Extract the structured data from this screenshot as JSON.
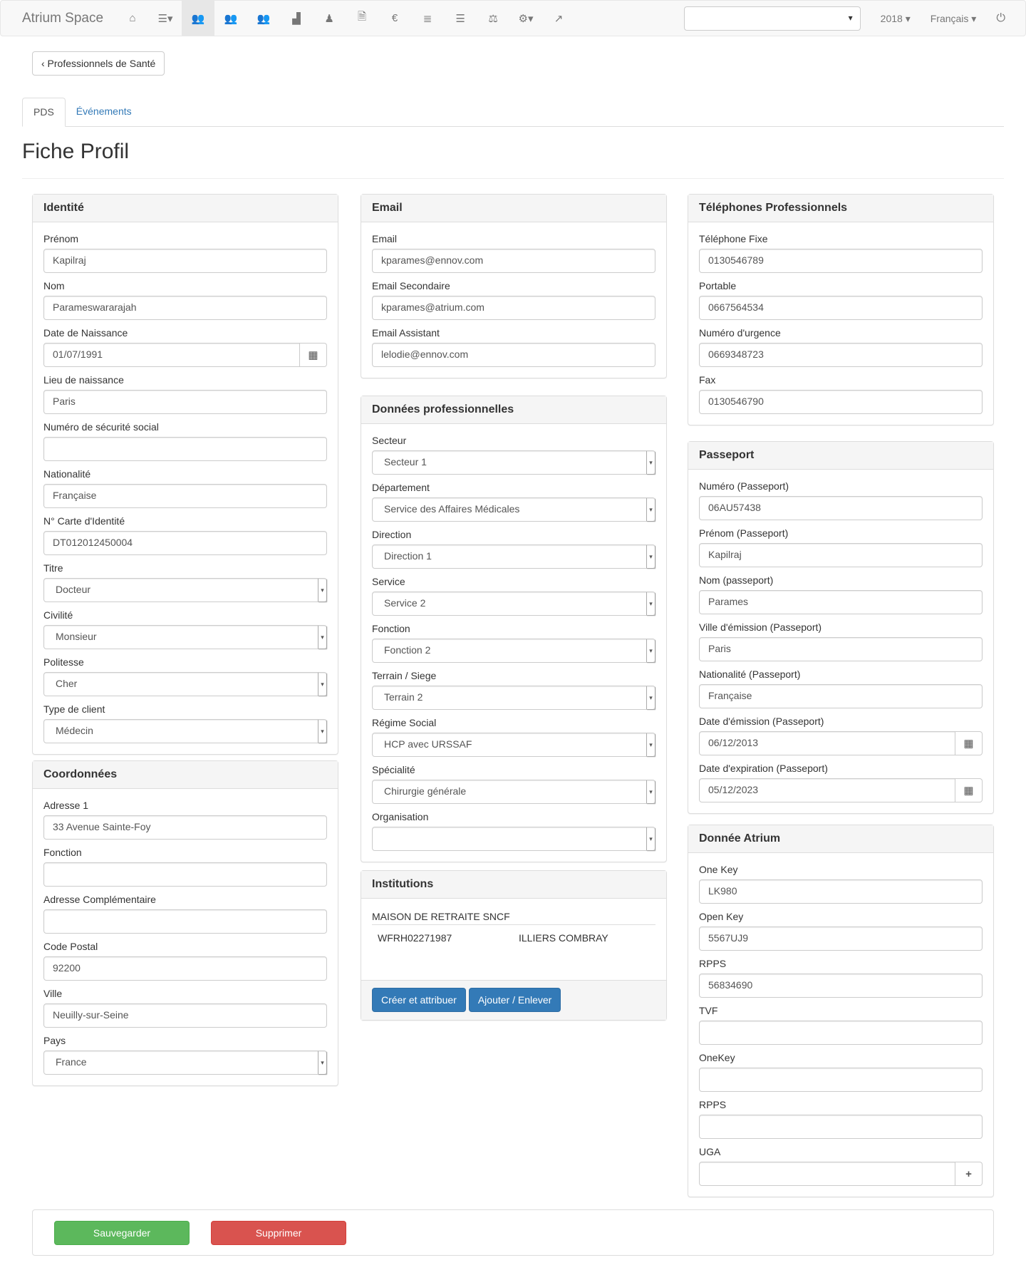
{
  "navbar": {
    "brand": "Atrium Space",
    "icons": [
      {
        "name": "home-icon",
        "glyph": "⌂"
      },
      {
        "name": "list-dropdown-icon",
        "glyph": "☰▾"
      },
      {
        "name": "group-icon",
        "glyph": "👥",
        "active": true
      },
      {
        "name": "group-icon-2",
        "glyph": "👥"
      },
      {
        "name": "group-icon-3",
        "glyph": "👥"
      },
      {
        "name": "industry-icon",
        "glyph": "▟"
      },
      {
        "name": "person-icon",
        "glyph": "♟"
      },
      {
        "name": "document-icon",
        "glyph": "🗎"
      },
      {
        "name": "euro-icon",
        "glyph": "€"
      },
      {
        "name": "database-icon",
        "glyph": "≣"
      },
      {
        "name": "list-icon",
        "glyph": "☰"
      },
      {
        "name": "scale-icon",
        "glyph": "⚖"
      },
      {
        "name": "settings-dropdown-icon",
        "glyph": "⚙▾"
      },
      {
        "name": "share-icon",
        "glyph": "↗"
      }
    ],
    "select_value": "",
    "year": "2018 ▾",
    "language": "Français ▾",
    "power_icon": "⏻"
  },
  "back_label": "‹ Professionnels de Santé",
  "tabs": [
    {
      "label": "PDS",
      "active": true
    },
    {
      "label": "Événements"
    }
  ],
  "title": "Fiche Profil",
  "panels": [
    {
      "id": "identite",
      "title": "Identité",
      "fields": [
        {
          "label": "Prénom",
          "value": "Kapilraj"
        },
        {
          "label": "Nom",
          "value": "Parameswararajah"
        },
        {
          "label": "Date de Naissance",
          "value": "01/07/1991",
          "type": "date"
        },
        {
          "label": "Lieu de naissance",
          "value": "Paris"
        },
        {
          "label": "Numéro de sécurité social",
          "value": ""
        },
        {
          "label": "Nationalité",
          "value": "Française"
        },
        {
          "label": "N° Carte d'Identité",
          "value": "DT012012450004"
        },
        {
          "label": "Titre",
          "value": "Docteur",
          "type": "select"
        },
        {
          "label": "Civilité",
          "value": "Monsieur",
          "type": "select"
        },
        {
          "label": "Politesse",
          "value": "Cher",
          "type": "select"
        },
        {
          "label": "Type de client",
          "value": "Médecin",
          "type": "select"
        }
      ]
    },
    {
      "id": "coordonnees",
      "title": "Coordonnées",
      "fields": [
        {
          "label": "Adresse 1",
          "value": "33 Avenue Sainte-Foy"
        },
        {
          "label": "Fonction",
          "value": ""
        },
        {
          "label": "Adresse Complémentaire",
          "value": ""
        },
        {
          "label": "Code Postal",
          "value": "92200"
        },
        {
          "label": "Ville",
          "value": "Neuilly-sur-Seine"
        },
        {
          "label": "Pays",
          "value": "France",
          "type": "select"
        }
      ]
    },
    {
      "id": "email",
      "title": "Email",
      "fields": [
        {
          "label": "Email",
          "value": "kparames@ennov.com"
        },
        {
          "label": "Email Secondaire",
          "value": "kparames@atrium.com"
        },
        {
          "label": "Email Assistant",
          "value": "lelodie@ennov.com"
        }
      ]
    },
    {
      "id": "donnees-pro",
      "title": "Données professionnelles",
      "fields": [
        {
          "label": "Secteur",
          "value": "Secteur 1",
          "type": "select"
        },
        {
          "label": "Département",
          "value": "Service des Affaires Médicales",
          "type": "select"
        },
        {
          "label": "Direction",
          "value": "Direction 1",
          "type": "select"
        },
        {
          "label": "Service",
          "value": "Service 2",
          "type": "select"
        },
        {
          "label": "Fonction",
          "value": "Fonction 2",
          "type": "select"
        },
        {
          "label": "Terrain / Siege",
          "value": "Terrain 2",
          "type": "select"
        },
        {
          "label": "Régime Social",
          "value": "HCP avec URSSAF",
          "type": "select"
        },
        {
          "label": "Spécialité",
          "value": "Chirurgie générale",
          "type": "select"
        },
        {
          "label": "Organisation",
          "value": "",
          "type": "select"
        }
      ]
    },
    {
      "id": "telephones",
      "title": "Téléphones Professionnels",
      "fields": [
        {
          "label": "Téléphone Fixe",
          "value": "0130546789"
        },
        {
          "label": "Portable",
          "value": "0667564534"
        },
        {
          "label": "Numéro d'urgence",
          "value": "0669348723"
        },
        {
          "label": "Fax",
          "value": "0130546790"
        }
      ]
    },
    {
      "id": "passeport",
      "title": "Passeport",
      "fields": [
        {
          "label": "Numéro (Passeport)",
          "value": "06AU57438"
        },
        {
          "label": "Prénom (Passeport)",
          "value": "Kapilraj"
        },
        {
          "label": "Nom (passeport)",
          "value": "Parames"
        },
        {
          "label": "Ville d'émission (Passeport)",
          "value": "Paris"
        },
        {
          "label": "Nationalité (Passeport)",
          "value": "Française"
        },
        {
          "label": "Date d'émission (Passeport)",
          "value": "06/12/2013",
          "type": "date"
        },
        {
          "label": "Date d'expiration (Passeport)",
          "value": "05/12/2023",
          "type": "date"
        }
      ]
    },
    {
      "id": "atrium",
      "title": "Donnée Atrium",
      "fields": [
        {
          "label": "One Key",
          "value": "LK980"
        },
        {
          "label": "Open Key",
          "value": "5567UJ9"
        },
        {
          "label": "RPPS",
          "value": "56834690"
        },
        {
          "label": "TVF",
          "value": ""
        },
        {
          "label": "OneKey",
          "value": ""
        },
        {
          "label": "RPPS",
          "value": ""
        },
        {
          "label": "UGA",
          "value": "",
          "type": "plus"
        }
      ]
    }
  ],
  "institutions": {
    "title": "Institutions",
    "header": "MAISON DE RETRAITE SNCF",
    "row": [
      "WFRH02271987",
      "ILLIERS COMBRAY"
    ],
    "create_label": "Créer et attribuer",
    "add_remove_label": "Ajouter / Enlever"
  },
  "footer": {
    "save_label": "Sauvegarder",
    "delete_label": "Supprimer"
  },
  "colors": {
    "primary": "#337ab7",
    "success": "#5cb85c",
    "danger": "#d9534f"
  }
}
